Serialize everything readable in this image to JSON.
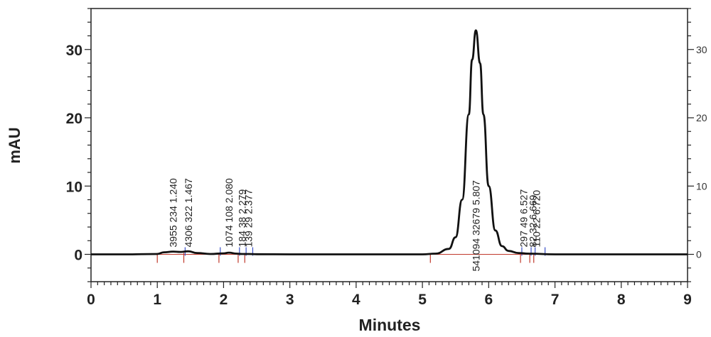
{
  "chart_data": {
    "type": "line",
    "title": "",
    "xlabel": "Minutes",
    "ylabel": "mAU",
    "xlim": [
      0,
      9
    ],
    "ylim": [
      -4,
      36
    ],
    "x_ticks": [
      "0",
      "1",
      "2",
      "3",
      "4",
      "5",
      "6",
      "7",
      "8",
      "9"
    ],
    "y_ticks": [
      "0",
      "10",
      "20",
      "30"
    ],
    "y_ticks_right": [
      "0",
      "10",
      "20",
      "30"
    ],
    "grid": false,
    "colors": {
      "trace": "#111111",
      "baseline": "#c0392b",
      "marker_start": "#c0392b",
      "marker_end": "#3a50c8",
      "axis": "#222222"
    },
    "series": [
      {
        "x": [
          0,
          0.5,
          1.0,
          1.1,
          1.24,
          1.35,
          1.467,
          1.6,
          1.8,
          2.0,
          2.08,
          2.2,
          2.279,
          2.377,
          2.5,
          3.0,
          4.0,
          5.0,
          5.2,
          5.4,
          5.5,
          5.6,
          5.7,
          5.75,
          5.807,
          5.87,
          5.92,
          6.0,
          6.1,
          6.2,
          6.3,
          6.45,
          6.6,
          7.0,
          8.0,
          9.0
        ],
        "y": [
          0,
          0,
          0.05,
          0.3,
          0.4,
          0.35,
          0.45,
          0.2,
          0.05,
          0.15,
          0.25,
          0.1,
          0.05,
          0.05,
          0.02,
          0,
          0,
          0,
          0.1,
          0.8,
          2.5,
          8.0,
          20.5,
          28.5,
          32.8,
          28.0,
          20.5,
          10.0,
          3.5,
          1.2,
          0.5,
          0.2,
          0.1,
          0,
          0,
          0
        ]
      }
    ],
    "peaks": [
      {
        "rt": 1.24,
        "text": "3955  234  1.240"
      },
      {
        "rt": 1.467,
        "text": "4306  322  1.467"
      },
      {
        "rt": 2.08,
        "text": "1074  108  2.080"
      },
      {
        "rt": 2.279,
        "text": "184  38  2.279"
      },
      {
        "rt": 2.377,
        "text": "139  29  2.377"
      },
      {
        "rt": 5.807,
        "text": "541094  32679  5.807"
      },
      {
        "rt": 6.527,
        "text": "297  49  6.527"
      },
      {
        "rt": 6.669,
        "text": "82  32  6.669"
      },
      {
        "rt": 6.72,
        "text": "110  22  6.720"
      }
    ],
    "integration_marks": [
      {
        "x": 1.0,
        "kind": "start"
      },
      {
        "x": 1.4,
        "kind": "start"
      },
      {
        "x": 1.42,
        "kind": "end"
      },
      {
        "x": 1.93,
        "kind": "start"
      },
      {
        "x": 1.95,
        "kind": "end"
      },
      {
        "x": 2.22,
        "kind": "start"
      },
      {
        "x": 2.24,
        "kind": "end"
      },
      {
        "x": 2.32,
        "kind": "start"
      },
      {
        "x": 2.34,
        "kind": "end"
      },
      {
        "x": 2.44,
        "kind": "end"
      },
      {
        "x": 5.12,
        "kind": "start"
      },
      {
        "x": 6.48,
        "kind": "start"
      },
      {
        "x": 6.5,
        "kind": "end"
      },
      {
        "x": 6.62,
        "kind": "start"
      },
      {
        "x": 6.64,
        "kind": "end"
      },
      {
        "x": 6.68,
        "kind": "start"
      },
      {
        "x": 6.7,
        "kind": "end"
      },
      {
        "x": 6.85,
        "kind": "end"
      }
    ]
  }
}
